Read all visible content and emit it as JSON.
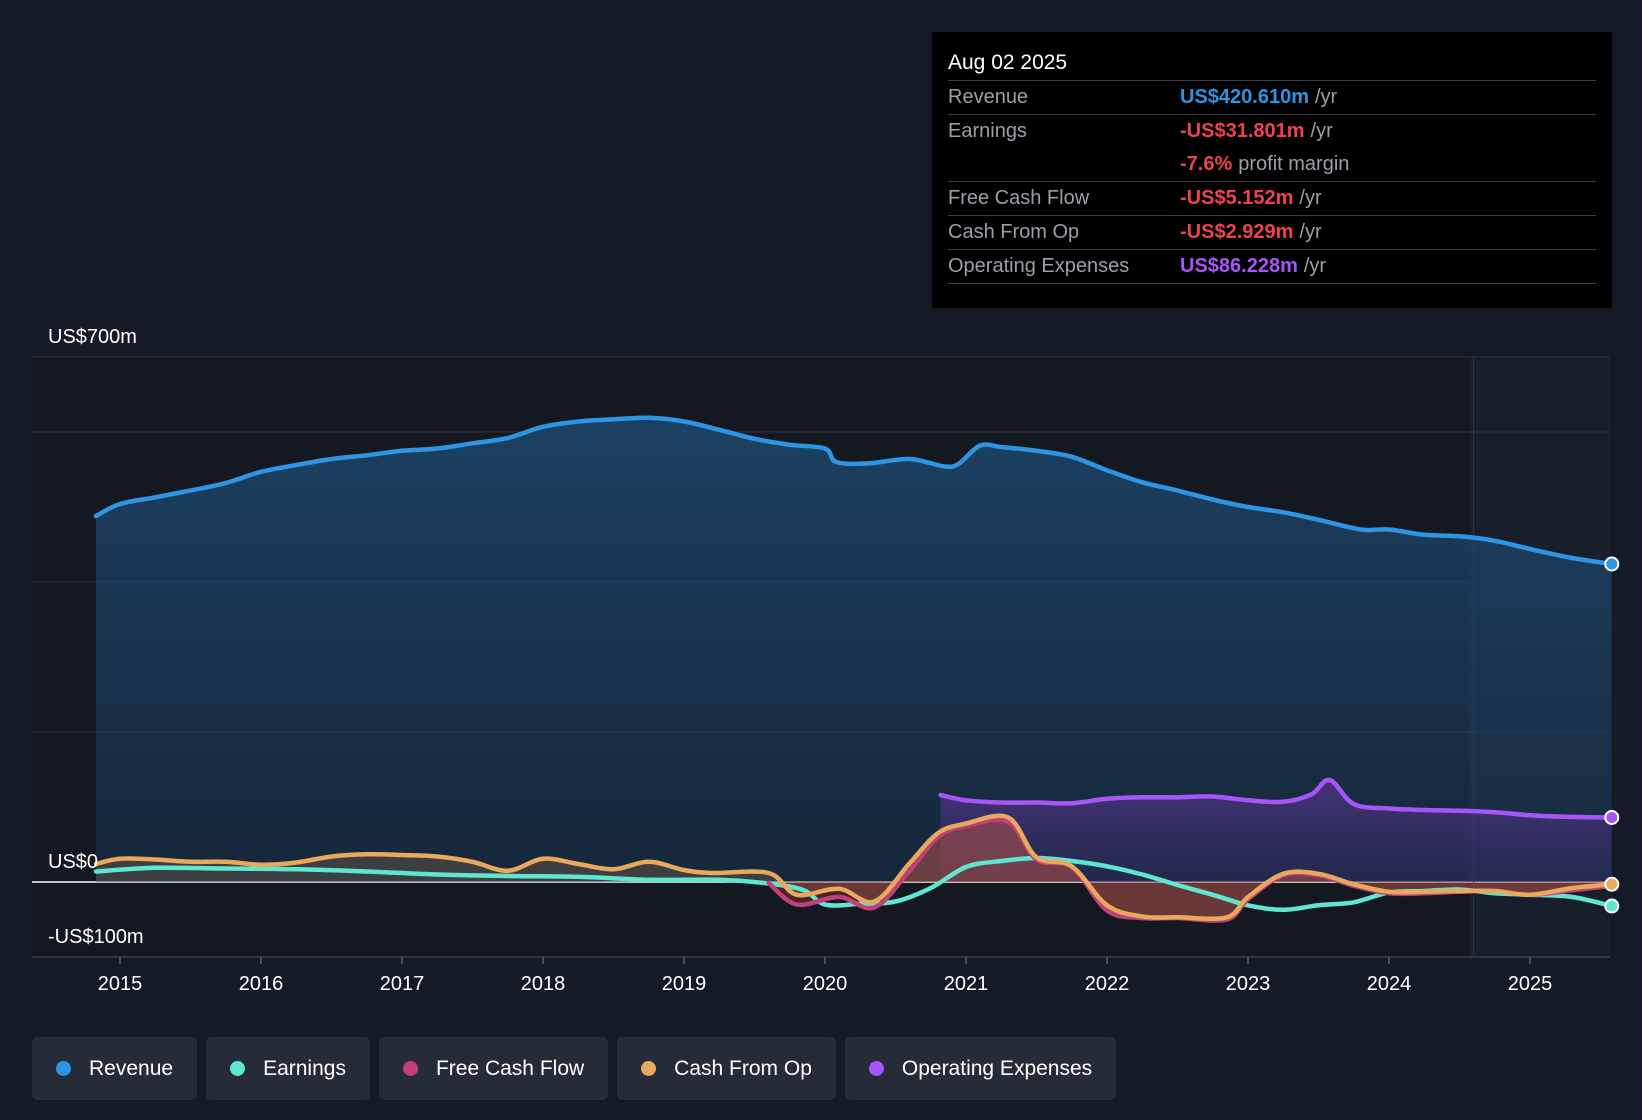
{
  "tooltip": {
    "date": "Aug 02 2025",
    "rows": [
      {
        "label": "Revenue",
        "value": "US$420.610m",
        "unit": "/yr",
        "color": "#2e94e4"
      },
      {
        "label": "Earnings",
        "value": "-US$31.801m",
        "unit": "/yr",
        "color": "#f0424f"
      },
      {
        "label": "",
        "value": "-7.6%",
        "unit": "profit margin",
        "color": "#f0424f"
      },
      {
        "label": "Free Cash Flow",
        "value": "-US$5.152m",
        "unit": "/yr",
        "color": "#f0424f"
      },
      {
        "label": "Cash From Op",
        "value": "-US$2.929m",
        "unit": "/yr",
        "color": "#f0424f"
      },
      {
        "label": "Operating Expenses",
        "value": "US$86.228m",
        "unit": "/yr",
        "color": "#a855f7"
      }
    ]
  },
  "legend": [
    {
      "label": "Revenue",
      "color": "#2e94e4"
    },
    {
      "label": "Earnings",
      "color": "#5ee6d0"
    },
    {
      "label": "Free Cash Flow",
      "color": "#c0407a"
    },
    {
      "label": "Cash From Op",
      "color": "#e8a95c"
    },
    {
      "label": "Operating Expenses",
      "color": "#a855f7"
    }
  ],
  "chart_data": {
    "type": "line",
    "title": "",
    "xlabel": "",
    "ylabel": "",
    "ylim": [
      -100,
      700
    ],
    "y_labels": [
      {
        "value": 700,
        "label": "US$700m"
      },
      {
        "value": 0,
        "label": "US$0"
      },
      {
        "value": -100,
        "label": "-US$100m"
      }
    ],
    "gridlines": [
      700,
      600,
      400,
      200,
      0
    ],
    "xlim": [
      2014.55,
      2025.6
    ],
    "x_ticks": [
      "2015",
      "2016",
      "2017",
      "2018",
      "2019",
      "2020",
      "2021",
      "2022",
      "2023",
      "2024",
      "2025"
    ],
    "forecast_start": 2024.6,
    "series": [
      {
        "name": "Revenue",
        "color": "#2e94e4",
        "fill": true,
        "x": [
          2014.83,
          2015.0,
          2015.25,
          2015.5,
          2015.75,
          2016.0,
          2016.25,
          2016.5,
          2016.75,
          2017.0,
          2017.25,
          2017.5,
          2017.75,
          2018.0,
          2018.25,
          2018.5,
          2018.75,
          2019.0,
          2019.25,
          2019.5,
          2019.75,
          2020.0,
          2020.08,
          2020.3,
          2020.6,
          2020.85,
          2020.95,
          2021.1,
          2021.25,
          2021.5,
          2021.75,
          2022.0,
          2022.25,
          2022.5,
          2022.75,
          2023.0,
          2023.25,
          2023.5,
          2023.8,
          2024.0,
          2024.25,
          2024.5,
          2024.75,
          2025.0,
          2025.3,
          2025.58
        ],
        "values": [
          488,
          504,
          513,
          522,
          532,
          547,
          556,
          564,
          569,
          575,
          578,
          585,
          592,
          607,
          614,
          617,
          619,
          614,
          603,
          591,
          583,
          578,
          560,
          558,
          564,
          554,
          558,
          582,
          580,
          575,
          567,
          549,
          533,
          522,
          510,
          500,
          493,
          483,
          470,
          470,
          463,
          461,
          455,
          444,
          432,
          424
        ]
      },
      {
        "name": "Operating Expenses",
        "color": "#a855f7",
        "fill": true,
        "x": [
          2020.82,
          2021.0,
          2021.25,
          2021.5,
          2021.75,
          2022.0,
          2022.25,
          2022.5,
          2022.75,
          2023.0,
          2023.25,
          2023.45,
          2023.58,
          2023.75,
          2024.0,
          2024.25,
          2024.5,
          2024.75,
          2025.0,
          2025.25,
          2025.58
        ],
        "values": [
          116,
          109,
          106,
          106,
          105,
          111,
          113,
          113,
          114,
          109,
          107,
          117,
          136,
          104,
          98,
          96,
          95,
          93,
          89,
          87,
          86
        ]
      },
      {
        "name": "Earnings",
        "color": "#5ee6d0",
        "fill": false,
        "x": [
          2014.83,
          2015.25,
          2015.75,
          2016.25,
          2016.75,
          2017.25,
          2017.75,
          2018.25,
          2018.75,
          2019.25,
          2019.6,
          2019.85,
          2020.0,
          2020.25,
          2020.5,
          2020.75,
          2021.0,
          2021.25,
          2021.5,
          2021.75,
          2022.0,
          2022.25,
          2022.5,
          2022.75,
          2023.0,
          2023.25,
          2023.5,
          2023.75,
          2024.0,
          2024.25,
          2024.5,
          2024.75,
          2025.0,
          2025.3,
          2025.58
        ],
        "values": [
          14,
          19,
          18,
          17,
          14,
          10,
          8,
          7,
          3,
          3,
          -2,
          -11,
          -30,
          -29,
          -26,
          -8,
          20,
          28,
          32,
          28,
          21,
          10,
          -4,
          -17,
          -31,
          -37,
          -31,
          -27,
          -14,
          -12,
          -10,
          -15,
          -17,
          -20,
          -32
        ]
      },
      {
        "name": "Free Cash Flow",
        "color": "#c0407a",
        "fill": true,
        "x": [
          2019.6,
          2019.8,
          2020.1,
          2020.35,
          2020.6,
          2020.8,
          2021.0,
          2021.3,
          2021.5,
          2021.75,
          2022.0,
          2022.25,
          2022.5,
          2022.85,
          2023.0,
          2023.25,
          2023.5,
          2023.75,
          2024.0,
          2024.25,
          2024.5,
          2024.75,
          2025.0,
          2025.3,
          2025.58
        ],
        "values": [
          -1,
          -30,
          -20,
          -34,
          15,
          60,
          75,
          80,
          30,
          20,
          -38,
          -48,
          -48,
          -50,
          -23,
          9,
          9,
          -5,
          -15,
          -15,
          -13,
          -12,
          -17,
          -11,
          -5
        ]
      },
      {
        "name": "Cash From Op",
        "color": "#e8a95c",
        "fill": true,
        "x": [
          2014.83,
          2015.0,
          2015.25,
          2015.5,
          2015.75,
          2016.0,
          2016.25,
          2016.5,
          2016.75,
          2017.0,
          2017.25,
          2017.5,
          2017.75,
          2018.0,
          2018.25,
          2018.5,
          2018.75,
          2019.0,
          2019.2,
          2019.6,
          2019.8,
          2020.1,
          2020.35,
          2020.6,
          2020.8,
          2021.0,
          2021.3,
          2021.5,
          2021.75,
          2022.0,
          2022.25,
          2022.5,
          2022.85,
          2023.0,
          2023.25,
          2023.5,
          2023.75,
          2024.0,
          2024.25,
          2024.5,
          2024.75,
          2025.0,
          2025.3,
          2025.58
        ],
        "values": [
          24,
          31,
          30,
          27,
          27,
          23,
          26,
          34,
          37,
          36,
          34,
          27,
          15,
          31,
          24,
          17,
          27,
          16,
          12,
          12,
          -17,
          -9,
          -26,
          25,
          65,
          78,
          86,
          33,
          21,
          -31,
          -46,
          -47,
          -47,
          -20,
          11,
          11,
          -3,
          -13,
          -13,
          -12,
          -12,
          -17,
          -8,
          -3
        ]
      }
    ]
  }
}
